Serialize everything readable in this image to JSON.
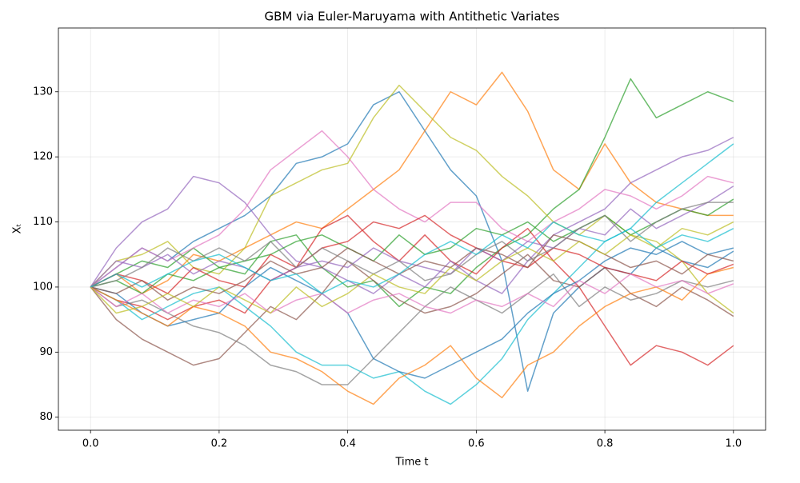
{
  "chart_data": {
    "type": "line",
    "title": "GBM via Euler-Maruyama with Antithetic Variates",
    "x_label": "Time t",
    "y_label": "Xₜ",
    "x": [
      0,
      0.04,
      0.08,
      0.12,
      0.16,
      0.2,
      0.24,
      0.28,
      0.32,
      0.36,
      0.4,
      0.44,
      0.48,
      0.52,
      0.56,
      0.6,
      0.64,
      0.68,
      0.72,
      0.76,
      0.8,
      0.84,
      0.88,
      0.92,
      0.96,
      1.0
    ],
    "series": [
      {
        "color": "#1f77b4",
        "values": [
          100,
          103,
          106,
          104,
          107,
          109,
          111,
          114,
          119,
          120,
          122,
          128,
          130,
          124,
          118,
          114,
          104,
          84,
          96,
          100,
          103,
          102,
          106,
          104,
          103,
          105.5
        ]
      },
      {
        "color": "#ff7f0e",
        "values": [
          100,
          102,
          99,
          101,
          105,
          104,
          106,
          108,
          110,
          109,
          112,
          115,
          118,
          124,
          130,
          128,
          133,
          127,
          118,
          115,
          122,
          116,
          113,
          112,
          111,
          111
        ]
      },
      {
        "color": "#2ca02c",
        "values": [
          100,
          102,
          104,
          103,
          106,
          103,
          102,
          107,
          108,
          103,
          100,
          101,
          97,
          100,
          99,
          103,
          106,
          108,
          112,
          115,
          123,
          132,
          126,
          128,
          130,
          128.5
        ]
      },
      {
        "color": "#d62728",
        "values": [
          100,
          98,
          97,
          95,
          97,
          98,
          96,
          101,
          103,
          109,
          111,
          107,
          104,
          108,
          104,
          102,
          106,
          109,
          104,
          100,
          94,
          88,
          91,
          90,
          88,
          91
        ]
      },
      {
        "color": "#9467bd",
        "values": [
          100,
          106,
          110,
          112,
          117,
          116,
          113,
          108,
          104,
          103,
          101,
          99,
          102,
          100,
          104,
          101,
          99,
          104,
          108,
          110,
          112,
          116,
          118,
          120,
          121,
          123
        ]
      },
      {
        "color": "#8c564b",
        "values": [
          100,
          95,
          92,
          90,
          88,
          89,
          93,
          97,
          95,
          99,
          104,
          101,
          98,
          96,
          97,
          99,
          102,
          105,
          101,
          100,
          103,
          99,
          97,
          100,
          98,
          95.5
        ]
      },
      {
        "color": "#e377c2",
        "values": [
          100,
          103,
          106,
          104,
          106,
          108,
          112,
          118,
          121,
          124,
          120,
          115,
          112,
          110,
          113,
          113,
          109,
          107,
          110,
          112,
          115,
          114,
          112,
          114,
          117,
          116
        ]
      },
      {
        "color": "#7f7f7f",
        "values": [
          100,
          97,
          98,
          96,
          94,
          93,
          91,
          88,
          87,
          85,
          85,
          89,
          93,
          97,
          100,
          98,
          96,
          99,
          102,
          97,
          100,
          98,
          99,
          101,
          100,
          101
        ]
      },
      {
        "color": "#bcbd22",
        "values": [
          100,
          104,
          105,
          107,
          103,
          102,
          106,
          114,
          116,
          118,
          119,
          126,
          131,
          127,
          123,
          121,
          117,
          114,
          110,
          108,
          111,
          108,
          107,
          104,
          99,
          96
        ]
      },
      {
        "color": "#17becf",
        "values": [
          100,
          98,
          95,
          97,
          99,
          100,
          97,
          94,
          90,
          88,
          88,
          86,
          87,
          84,
          82,
          85,
          89,
          95,
          99,
          103,
          107,
          109,
          113,
          116,
          119,
          122
        ]
      },
      {
        "color": "#1f77b4",
        "values": [
          100,
          99,
          96,
          94,
          95,
          96,
          100,
          103,
          101,
          99,
          96,
          89,
          87,
          86,
          88,
          90,
          92,
          96,
          99,
          101,
          104,
          106,
          105,
          107,
          105,
          106
        ]
      },
      {
        "color": "#ff7f0e",
        "values": [
          100,
          98,
          96,
          94,
          97,
          96,
          94,
          90,
          89,
          87,
          84,
          82,
          86,
          88,
          91,
          86,
          83,
          88,
          90,
          94,
          97,
          99,
          100,
          98,
          102,
          103
        ]
      },
      {
        "color": "#2ca02c",
        "values": [
          100,
          101,
          99,
          102,
          101,
          103,
          104,
          105,
          107,
          108,
          106,
          104,
          108,
          105,
          106,
          109,
          108,
          110,
          107,
          109,
          111,
          108,
          110,
          112,
          111,
          113.5
        ]
      },
      {
        "color": "#d62728",
        "values": [
          100,
          102,
          101,
          99,
          103,
          101,
          100,
          105,
          103,
          106,
          107,
          110,
          109,
          111,
          108,
          106,
          104,
          103,
          106,
          105,
          103,
          102,
          101,
          104,
          102,
          103.5
        ]
      },
      {
        "color": "#9467bd",
        "values": [
          100,
          104,
          103,
          105,
          102,
          104,
          103,
          101,
          103,
          104,
          103,
          106,
          104,
          103,
          102,
          106,
          104,
          107,
          106,
          109,
          108,
          112,
          109,
          111,
          113,
          115.5
        ]
      },
      {
        "color": "#8c564b",
        "values": [
          100,
          99,
          101,
          98,
          100,
          99,
          101,
          104,
          102,
          103,
          106,
          104,
          102,
          104,
          103,
          106,
          105,
          103,
          108,
          107,
          105,
          103,
          104,
          102,
          105,
          104
        ]
      },
      {
        "color": "#e377c2",
        "values": [
          100,
          97,
          99,
          96,
          98,
          97,
          99,
          96,
          98,
          99,
          96,
          98,
          99,
          97,
          96,
          98,
          97,
          99,
          97,
          101,
          99,
          102,
          100,
          101,
          99,
          100.5
        ]
      },
      {
        "color": "#7f7f7f",
        "values": [
          100,
          101,
          103,
          106,
          104,
          106,
          104,
          107,
          103,
          106,
          104,
          102,
          104,
          101,
          102,
          105,
          107,
          104,
          106,
          109,
          111,
          107,
          110,
          112,
          113,
          113
        ]
      },
      {
        "color": "#bcbd22",
        "values": [
          100,
          96,
          97,
          99,
          97,
          100,
          98,
          96,
          100,
          97,
          99,
          102,
          100,
          99,
          103,
          101,
          104,
          106,
          104,
          107,
          105,
          108,
          106,
          109,
          108,
          110
        ]
      },
      {
        "color": "#17becf",
        "values": [
          100,
          102,
          100,
          102,
          104,
          105,
          103,
          101,
          102,
          99,
          101,
          100,
          102,
          105,
          107,
          105,
          108,
          106,
          110,
          108,
          107,
          109,
          106,
          108,
          107,
          109
        ]
      }
    ],
    "xlim": [
      -0.05,
      1.05
    ],
    "ylim": [
      78.0,
      139.8
    ],
    "xticks": [
      {
        "value": 0,
        "label": "0.0"
      },
      0.2,
      0.4,
      0.6,
      0.8,
      {
        "value": 1,
        "label": "1.0"
      }
    ],
    "yticks": [
      80,
      90,
      100,
      110,
      120,
      130
    ],
    "grid": true
  }
}
